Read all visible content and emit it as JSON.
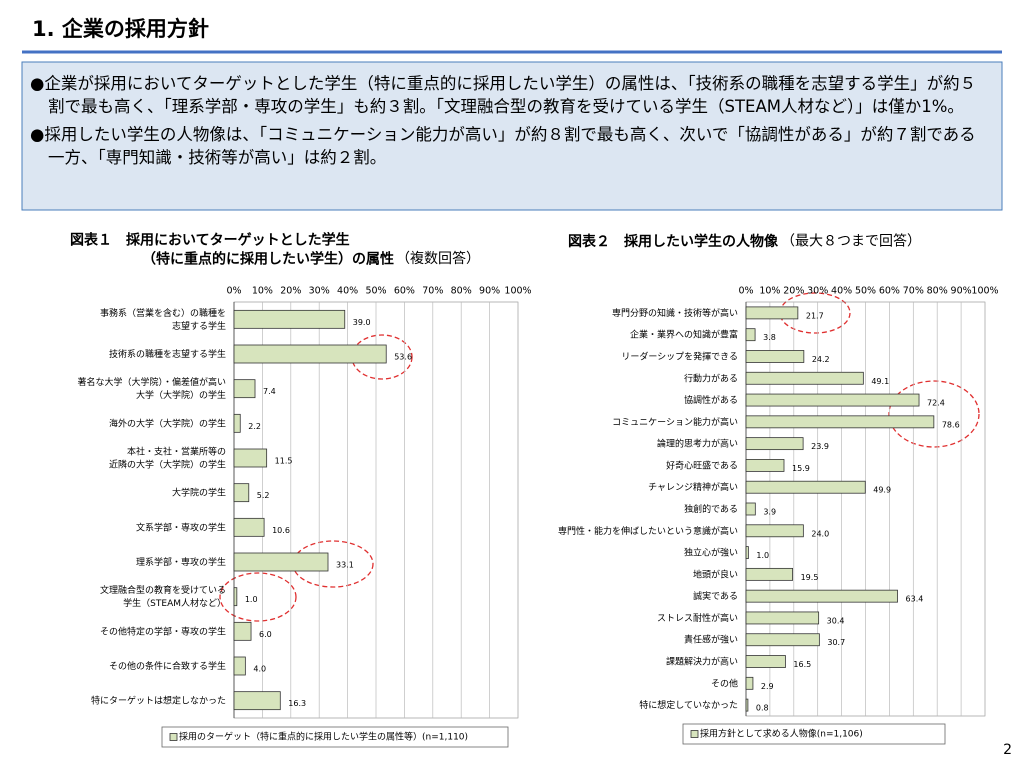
{
  "header": {
    "title": "1. 企業の採用方針"
  },
  "summary": {
    "bullets": [
      "●企業が採用においてターゲットとした学生（特に重点的に採用したい学生）の属性は、「技術系の職種を志望する学生」が約５割で最も高く、「理系学部・専攻の学生」も約３割。「文理融合型の教育を受けている学生（STEAM人材など）」は僅か1%。",
      "●採用したい学生の人物像は、「コミュニケーション能力が高い」が約８割で最も高く、次いで「協調性がある」が約７割である一方、「専門知識・技術等が高い」は約２割。"
    ]
  },
  "chart_data": [
    {
      "type": "bar",
      "title": "図表１　採用においてターゲットとした学生\n（特に重点的に採用したい学生）の属性",
      "subtitle": "（複数回答）",
      "categories": [
        "事務系（営業を含む）の職種を\n志望する学生",
        "技術系の職種を志望する学生",
        "著名な大学（大学院）・偏差値が高い\n大学（大学院）の学生",
        "海外の大学（大学院）の学生",
        "本社・支社・営業所等の\n近隣の大学（大学院）の学生",
        "大学院の学生",
        "文系学部・専攻の学生",
        "理系学部・専攻の学生",
        "文理融合型の教育を受けている\n学生（STEAM人材など）",
        "その他特定の学部・専攻の学生",
        "その他の条件に合致する学生",
        "特にターゲットは想定しなかった"
      ],
      "series": [
        {
          "name": "採用のターゲット（特に重点的に採用したい学生の属性等）(n=1,110)",
          "color": "#d7e4bd",
          "values": [
            39.0,
            53.6,
            7.4,
            2.2,
            11.5,
            5.2,
            10.6,
            33.1,
            1.0,
            6.0,
            4.0,
            16.3
          ],
          "value_labels": [
            "39.0",
            "53.6",
            "7.4",
            "2.2",
            "11.5",
            "5.2",
            "10.6",
            "33.1",
            "1.0",
            "6.0",
            "4.0",
            "16.3"
          ]
        }
      ],
      "xlim": [
        0,
        100
      ],
      "xticks": [
        {
          "value": 0,
          "label": "0%"
        },
        {
          "value": 10,
          "label": "10%"
        },
        {
          "value": 20,
          "label": "20%"
        },
        {
          "value": 30,
          "label": "30%"
        },
        {
          "value": 40,
          "label": "40%"
        },
        {
          "value": 50,
          "label": "50%"
        },
        {
          "value": 60,
          "label": "60%"
        },
        {
          "value": 70,
          "label": "70%"
        },
        {
          "value": 80,
          "label": "80%"
        },
        {
          "value": 90,
          "label": "90%"
        },
        {
          "value": 100,
          "label": "100%"
        }
      ],
      "grid": true
    },
    {
      "type": "bar",
      "title": "図表２　採用したい学生の人物像",
      "subtitle": "（最大８つまで回答）",
      "categories": [
        "専門分野の知識・技術等が高い",
        "企業・業界への知識が豊富",
        "リーダーシップを発揮できる",
        "行動力がある",
        "協調性がある",
        "コミュニケーション能力が高い",
        "論理的思考力が高い",
        "好奇心旺盛である",
        "チャレンジ精神が高い",
        "独創的である",
        "専門性・能力を伸ばしたいという意識が高い",
        "独立心が強い",
        "地頭が良い",
        "誠実である",
        "ストレス耐性が高い",
        "責任感が強い",
        "課題解決力が高い",
        "その他",
        "特に想定していなかった"
      ],
      "series": [
        {
          "name": "採用方針として求める人物像(n=1,106)",
          "color": "#d7e4bd",
          "values": [
            21.7,
            3.8,
            24.2,
            49.1,
            72.4,
            78.6,
            23.9,
            15.9,
            49.9,
            3.9,
            24.0,
            1.0,
            19.5,
            63.4,
            30.4,
            30.7,
            16.5,
            2.9,
            0.8
          ],
          "value_labels": [
            "21.7",
            "3.8",
            "24.2",
            "49.1",
            "72.4",
            "78.6",
            "23.9",
            "15.9",
            "49.9",
            "3.9",
            "24.0",
            "1.0",
            "19.5",
            "63.4",
            "30.4",
            "30.7",
            "16.5",
            "2.9",
            "0.8"
          ]
        }
      ],
      "xlim": [
        0,
        100
      ],
      "xticks": [
        {
          "value": 0,
          "label": "0%"
        },
        {
          "value": 10,
          "label": "10%"
        },
        {
          "value": 20,
          "label": "20%"
        },
        {
          "value": 30,
          "label": "30%"
        },
        {
          "value": 40,
          "label": "40%"
        },
        {
          "value": 50,
          "label": "50%"
        },
        {
          "value": 60,
          "label": "60%"
        },
        {
          "value": 70,
          "label": "70%"
        },
        {
          "value": 80,
          "label": "80%"
        },
        {
          "value": 90,
          "label": "90%"
        },
        {
          "value": 100,
          "label": "100%"
        }
      ],
      "grid": true
    }
  ],
  "page": {
    "number": "2"
  }
}
